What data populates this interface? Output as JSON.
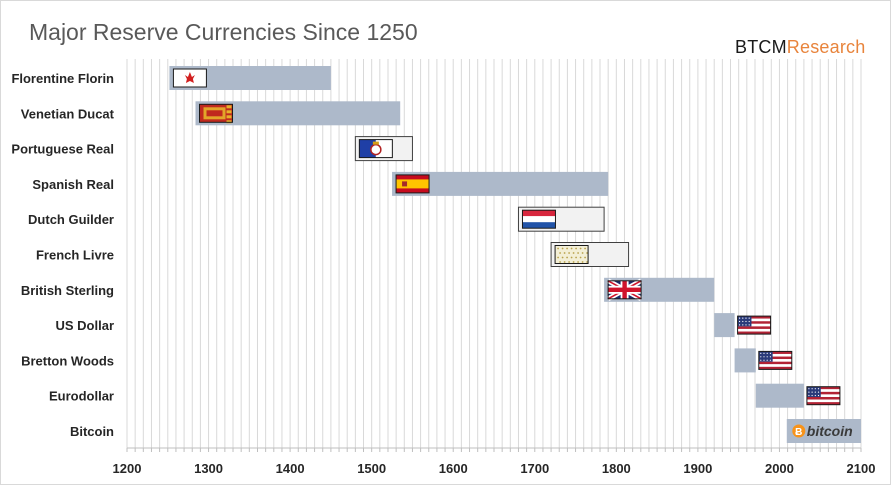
{
  "chart_data": {
    "type": "bar",
    "subtype": "horizontal-timeline",
    "title": "Major Reserve Currencies Since 1250",
    "brand": {
      "name_main": "BTCM",
      "name_accent": "Research"
    },
    "xlabel": "",
    "ylabel": "",
    "xlim": [
      1200,
      2100
    ],
    "xticks": [
      1200,
      1300,
      1400,
      1500,
      1600,
      1700,
      1800,
      1900,
      2000,
      2100
    ],
    "grid": "vertical-every-10-years",
    "legend": "none",
    "colors": {
      "bar": "#adb9ca",
      "outlined_bar": "#f2f2f2",
      "outline": "#404040",
      "grid": "#d9d9d9",
      "label": "#262626",
      "title": "#595959",
      "brand_accent": "#e8843c"
    },
    "categories": [
      "Florentine Florin",
      "Venetian Ducat",
      "Portuguese Real",
      "Spanish Real",
      "Dutch Guilder",
      "French Livre",
      "British Sterling",
      "US Dollar",
      "Bretton Woods",
      "Eurodollar",
      "Bitcoin"
    ],
    "series": [
      {
        "name": "Florentine Florin",
        "start": 1252,
        "end": 1450,
        "style": "filled",
        "flag": "florence"
      },
      {
        "name": "Venetian Ducat",
        "start": 1284,
        "end": 1535,
        "style": "filled",
        "flag": "venice"
      },
      {
        "name": "Portuguese Real",
        "start": 1480,
        "end": 1550,
        "style": "outlined",
        "flag": "portugal"
      },
      {
        "name": "Spanish Real",
        "start": 1525,
        "end": 1790,
        "style": "filled",
        "flag": "spain"
      },
      {
        "name": "Dutch Guilder",
        "start": 1680,
        "end": 1785,
        "style": "outlined",
        "flag": "netherlands"
      },
      {
        "name": "French Livre",
        "start": 1720,
        "end": 1815,
        "style": "outlined",
        "flag": "france"
      },
      {
        "name": "British Sterling",
        "start": 1785,
        "end": 1920,
        "style": "filled",
        "flag": "uk"
      },
      {
        "name": "US Dollar",
        "start": 1920,
        "end": 1945,
        "style": "filled",
        "flag": "usa"
      },
      {
        "name": "Bretton Woods",
        "start": 1945,
        "end": 1971,
        "style": "filled",
        "flag": "usa"
      },
      {
        "name": "Eurodollar",
        "start": 1971,
        "end": 2030,
        "style": "filled",
        "flag": "usa"
      },
      {
        "name": "Bitcoin",
        "start": 2009,
        "end": 2100,
        "style": "filled",
        "flag": "bitcoin",
        "flag_text": "bitcoin"
      }
    ]
  }
}
